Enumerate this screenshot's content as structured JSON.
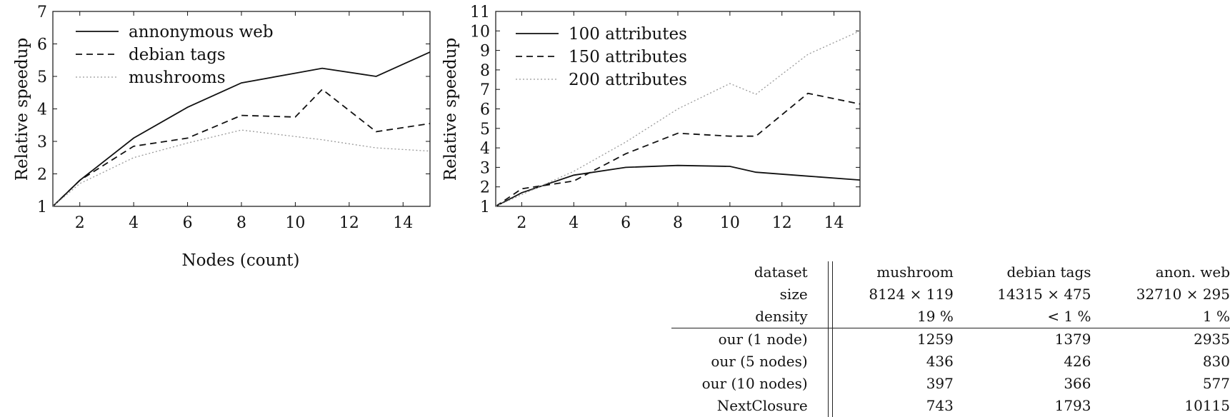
{
  "chart_data": [
    {
      "type": "line",
      "xlabel": "Nodes (count)",
      "ylabel": "Relative speedup",
      "xlim": [
        1,
        15
      ],
      "ylim": [
        1,
        7
      ],
      "xticks": [
        2,
        4,
        6,
        8,
        10,
        12,
        14
      ],
      "yticks": [
        1,
        2,
        3,
        4,
        5,
        6,
        7
      ],
      "x": [
        1,
        2,
        4,
        6,
        8,
        10,
        11,
        13,
        15
      ],
      "series": [
        {
          "name": "annonymous web",
          "style": "solid",
          "values": [
            1,
            1.8,
            3.1,
            4.05,
            4.8,
            5.1,
            5.25,
            5.0,
            5.75
          ]
        },
        {
          "name": "debian tags",
          "style": "dashed",
          "values": [
            1,
            1.8,
            2.85,
            3.1,
            3.8,
            3.75,
            4.6,
            3.3,
            3.55
          ]
        },
        {
          "name": "mushrooms",
          "style": "dotted",
          "values": [
            1,
            1.7,
            2.5,
            2.95,
            3.35,
            3.15,
            3.05,
            2.8,
            2.7
          ]
        }
      ],
      "legend_position": "top-left",
      "grid": false
    },
    {
      "type": "line",
      "xlabel": "",
      "ylabel": "Relative speedup",
      "xlim": [
        1,
        15
      ],
      "ylim": [
        1,
        11
      ],
      "xticks": [
        2,
        4,
        6,
        8,
        10,
        12,
        14
      ],
      "yticks": [
        1,
        2,
        3,
        4,
        5,
        6,
        7,
        8,
        9,
        10,
        11
      ],
      "x": [
        1,
        2,
        4,
        6,
        8,
        10,
        11,
        13,
        15
      ],
      "series": [
        {
          "name": "100 attributes",
          "style": "solid",
          "values": [
            1,
            1.7,
            2.6,
            3.0,
            3.1,
            3.05,
            2.75,
            2.55,
            2.35
          ]
        },
        {
          "name": "150 attributes",
          "style": "dashed",
          "values": [
            1,
            1.9,
            2.3,
            3.7,
            4.75,
            4.6,
            4.6,
            6.8,
            6.25
          ]
        },
        {
          "name": "200 attributes",
          "style": "dotted",
          "values": [
            1,
            1.6,
            2.8,
            4.3,
            6.0,
            7.3,
            6.75,
            8.8,
            10.0
          ]
        }
      ],
      "legend_position": "top-left",
      "grid": false
    },
    {
      "type": "table",
      "columns": [
        "dataset",
        "mushroom",
        "debian tags",
        "anon. web"
      ],
      "header_rows": [
        [
          "size",
          "8124 × 119",
          "14315 × 475",
          "32710 × 295"
        ],
        [
          "density",
          "19 %",
          "< 1 %",
          "1 %"
        ]
      ],
      "rows": [
        [
          "our (1 node)",
          "1259",
          "1379",
          "2935"
        ],
        [
          "our (5 nodes)",
          "436",
          "426",
          "830"
        ],
        [
          "our (10 nodes)",
          "397",
          "366",
          "577"
        ],
        [
          "NextClosure",
          "743",
          "1793",
          "10115"
        ]
      ]
    }
  ]
}
